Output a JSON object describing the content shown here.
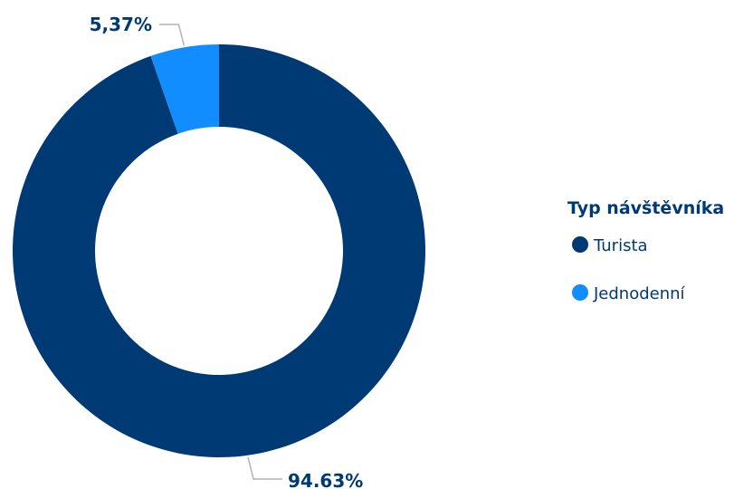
{
  "chart_data": {
    "type": "pie",
    "style": "donut",
    "legend_title": "Typ návštěvníka",
    "legend_position": "right",
    "categories": [
      "Turista",
      "Jednodenní"
    ],
    "values": [
      94.63,
      5.37
    ],
    "labels": [
      "94.63%",
      "5,37%"
    ],
    "colors": [
      "#003a75",
      "#118dff"
    ]
  }
}
